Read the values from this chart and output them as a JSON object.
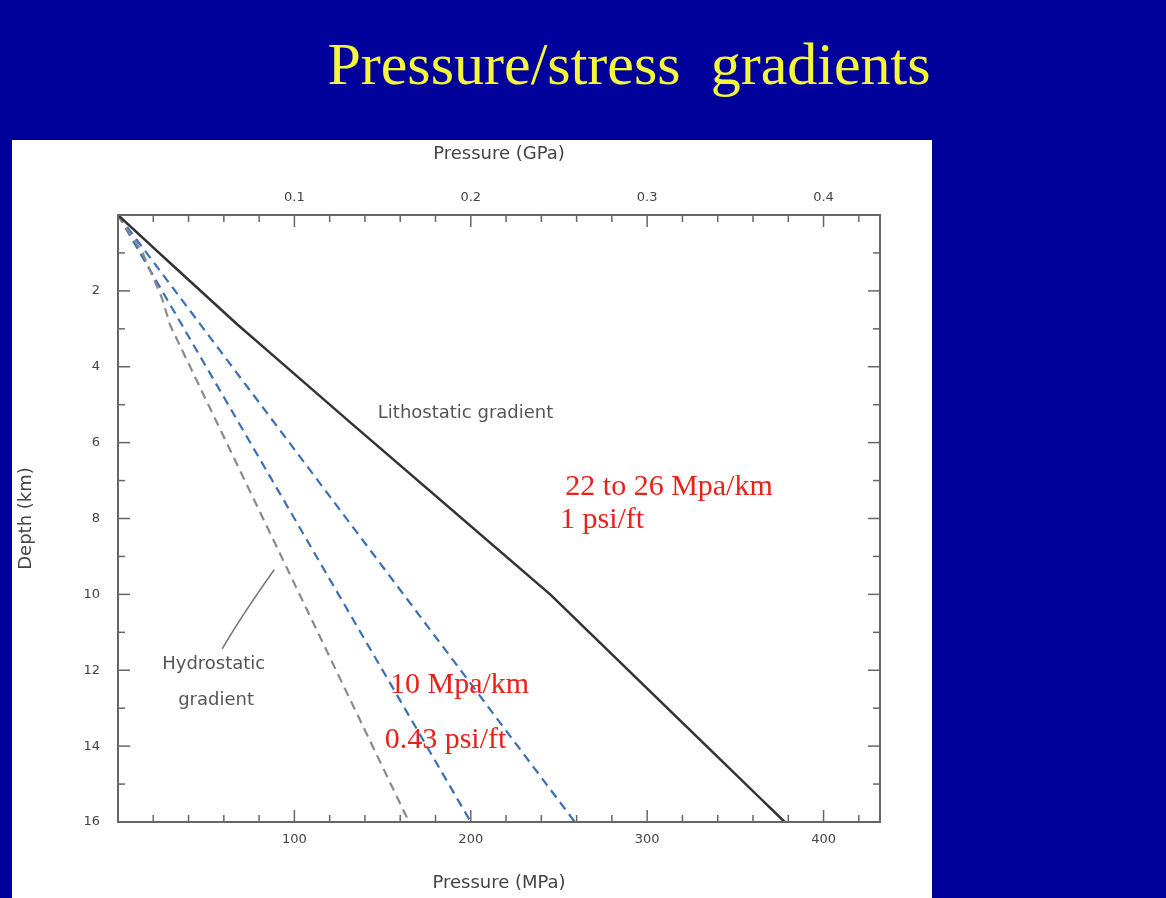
{
  "chart_data": {
    "type": "line",
    "title": "Pressure/stress  gradients",
    "xlabel": "Pressure (MPa)",
    "x2label": "Pressure (GPa)",
    "ylabel": "Depth (km)",
    "series": [
      {
        "color": "#333333",
        "line_style": "solid",
        "x": [
          0,
          28,
          68,
          130,
          245,
          378
        ],
        "values": [
          0,
          1.2,
          2.9,
          5.4,
          10,
          16
        ]
      },
      {
        "color": "#8a8a8a",
        "line_style": "dashed",
        "x": [
          0,
          14,
          25,
          29.5,
          165
        ],
        "values": [
          0,
          1,
          2.2,
          2.9,
          16
        ]
      },
      {
        "color": "#3a6fb5",
        "line_style": "dashed",
        "x": [
          0,
          200
        ],
        "values": [
          0,
          16
        ]
      },
      {
        "color": "#3a6fb5",
        "line_style": "dashed",
        "x": [
          0,
          259
        ],
        "values": [
          0,
          16
        ]
      }
    ],
    "xlim": [
      0,
      432
    ],
    "xticks": [
      {
        "value": 20,
        "label": null
      },
      {
        "value": 40,
        "label": null
      },
      {
        "value": 60,
        "label": null
      },
      {
        "value": 80,
        "label": null
      },
      100,
      {
        "value": 120,
        "label": null
      },
      {
        "value": 140,
        "label": null
      },
      {
        "value": 160,
        "label": null
      },
      {
        "value": 180,
        "label": null
      },
      200,
      {
        "value": 220,
        "label": null
      },
      {
        "value": 240,
        "label": null
      },
      {
        "value": 260,
        "label": null
      },
      {
        "value": 280,
        "label": null
      },
      300,
      {
        "value": 320,
        "label": null
      },
      {
        "value": 340,
        "label": null
      },
      {
        "value": 360,
        "label": null
      },
      {
        "value": 380,
        "label": null
      },
      400,
      {
        "value": 420,
        "label": null
      }
    ],
    "x2lim": [
      0,
      0.432
    ],
    "x2ticks": [
      {
        "value": 0.02,
        "label": null
      },
      {
        "value": 0.04,
        "label": null
      },
      {
        "value": 0.06,
        "label": null
      },
      {
        "value": 0.08,
        "label": null
      },
      0.1,
      {
        "value": 0.12,
        "label": null
      },
      {
        "value": 0.14,
        "label": null
      },
      {
        "value": 0.16,
        "label": null
      },
      {
        "value": 0.18,
        "label": null
      },
      0.2,
      {
        "value": 0.22,
        "label": null
      },
      {
        "value": 0.24,
        "label": null
      },
      {
        "value": 0.26,
        "label": null
      },
      {
        "value": 0.28,
        "label": null
      },
      0.3,
      {
        "value": 0.32,
        "label": null
      },
      {
        "value": 0.34,
        "label": null
      },
      {
        "value": 0.36,
        "label": null
      },
      {
        "value": 0.38,
        "label": null
      },
      0.4,
      {
        "value": 0.42,
        "label": null
      }
    ],
    "ylim": [
      16,
      0
    ],
    "yticks": [
      {
        "value": 1,
        "label": null
      },
      2,
      {
        "value": 3,
        "label": null
      },
      4,
      {
        "value": 5,
        "label": null
      },
      6,
      {
        "value": 7,
        "label": null
      },
      8,
      {
        "value": 9,
        "label": null
      },
      10,
      {
        "value": 11,
        "label": null
      },
      12,
      {
        "value": 13,
        "label": null
      },
      14,
      {
        "value": 15,
        "label": null
      },
      16
    ],
    "grid": false,
    "legend": false,
    "marker": "none",
    "annotations": [
      "Lithostatic gradient",
      "Hydrostatic",
      "gradient",
      "22 to 26 Mpa/km",
      "1 psi/ft",
      "10 Mpa/km",
      "0.43 psi/ft"
    ]
  }
}
